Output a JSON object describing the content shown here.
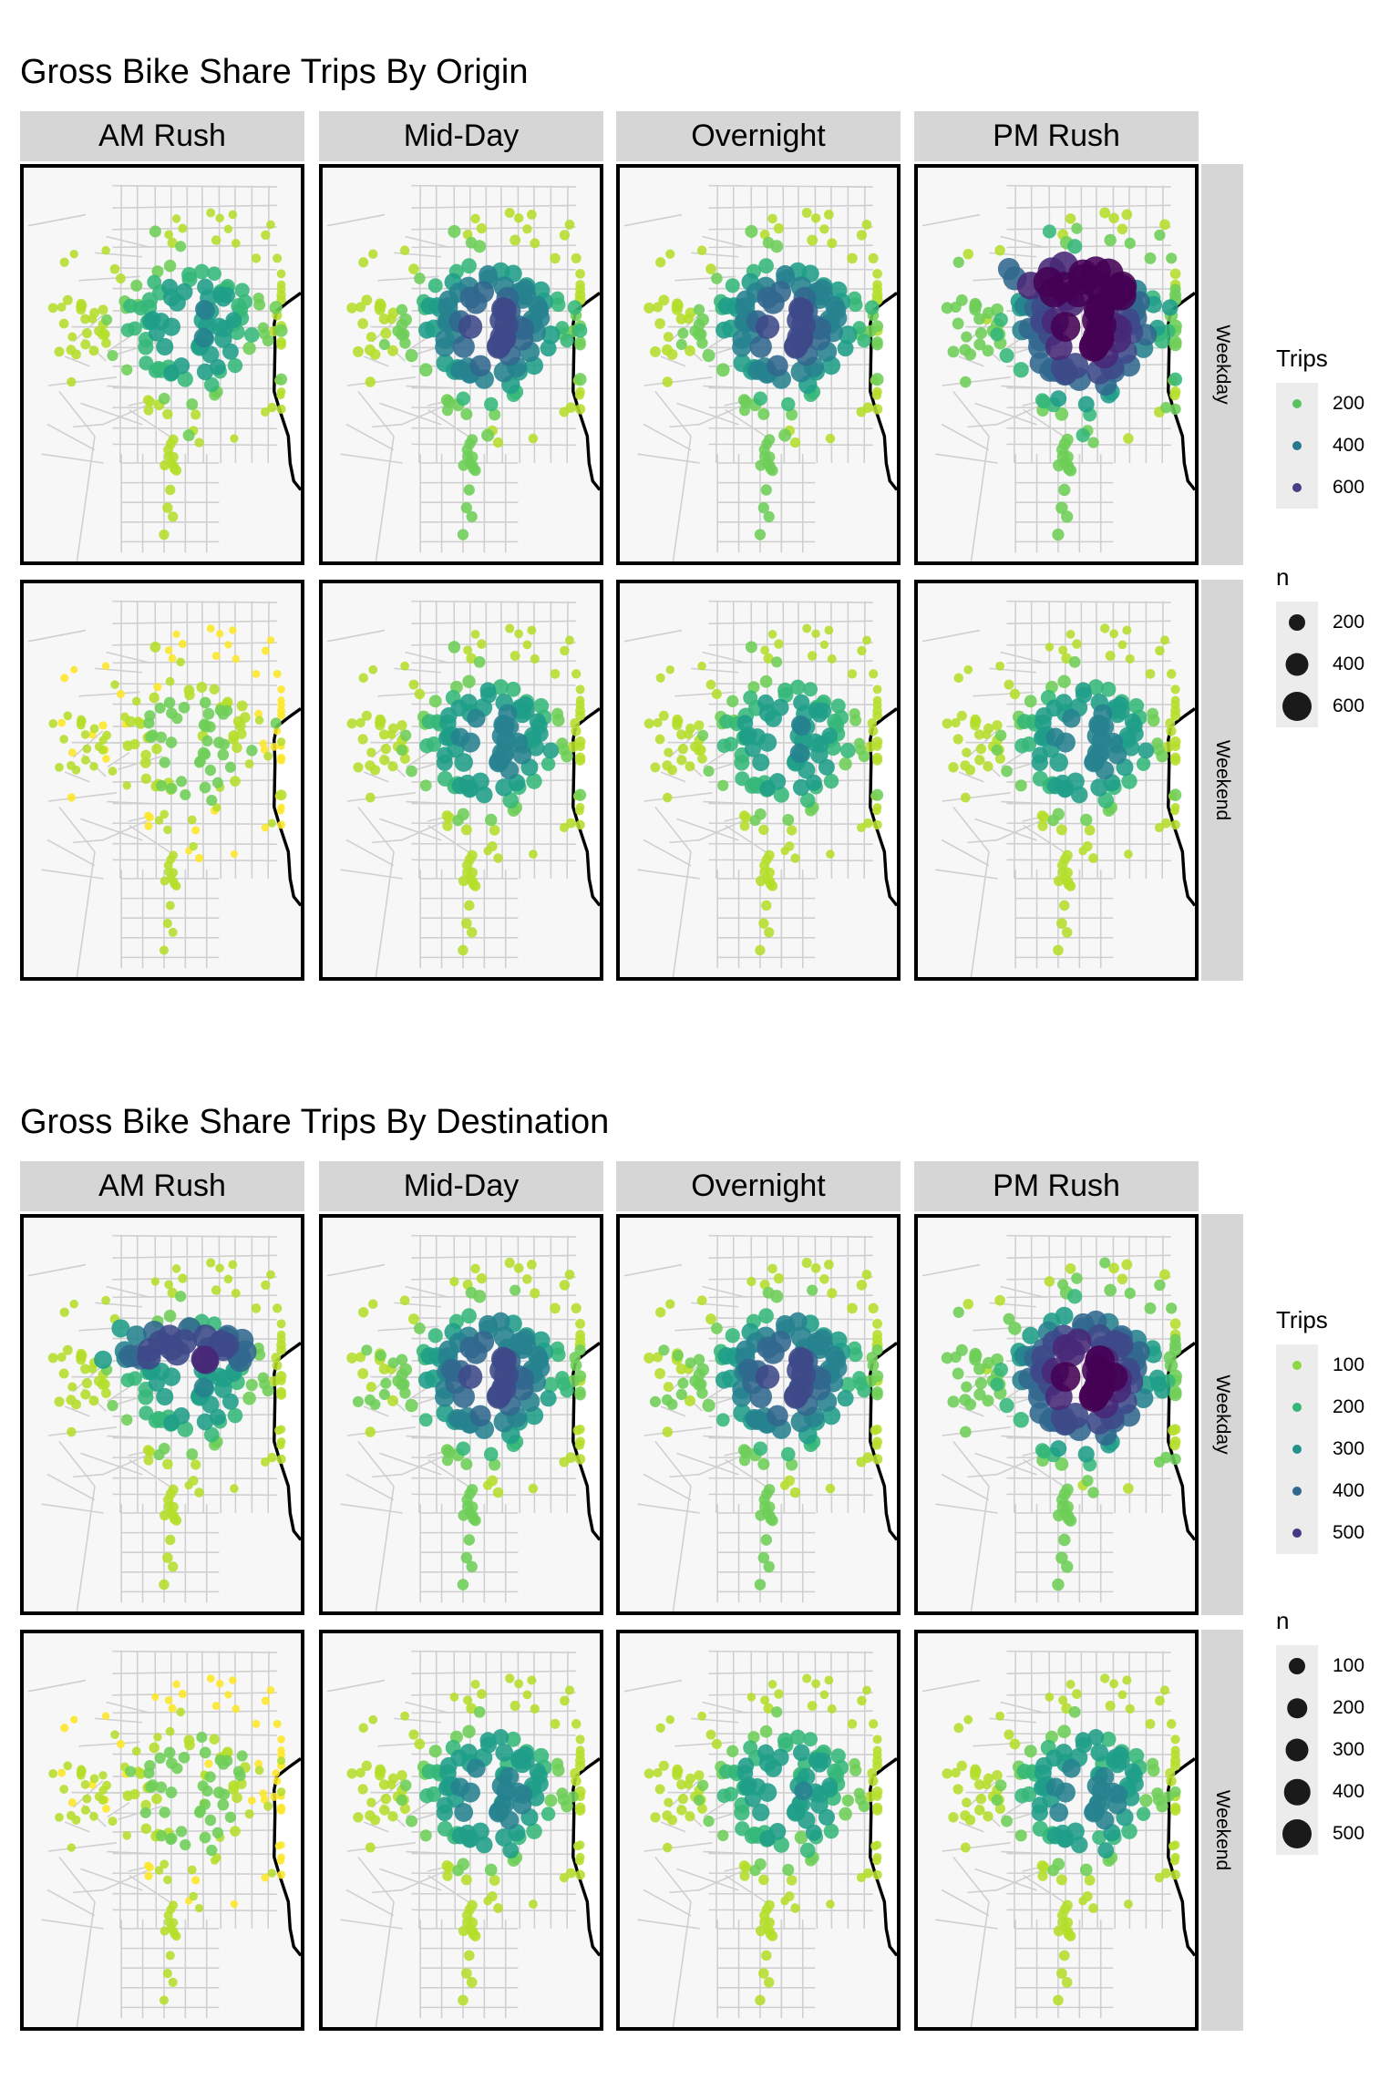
{
  "figures": [
    {
      "title": "Gross Bike Share Trips By Origin",
      "facet_columns": [
        "AM Rush",
        "Mid-Day",
        "Overnight",
        "PM Rush"
      ],
      "facet_rows": [
        "Weekday",
        "Weekend"
      ],
      "legend_color": {
        "title": "Trips",
        "labels": [
          "200",
          "400",
          "600"
        ],
        "colors": [
          "#5cc163",
          "#2a788e",
          "#433e85"
        ]
      },
      "legend_size": {
        "title": "n",
        "labels": [
          "200",
          "400",
          "600"
        ]
      }
    },
    {
      "title": "Gross Bike Share Trips By Destination",
      "facet_columns": [
        "AM Rush",
        "Mid-Day",
        "Overnight",
        "PM Rush"
      ],
      "facet_rows": [
        "Weekday",
        "Weekend"
      ],
      "legend_color": {
        "title": "Trips",
        "labels": [
          "100",
          "200",
          "300",
          "400",
          "500"
        ],
        "colors": [
          "#8fd744",
          "#35b779",
          "#21918c",
          "#31688e",
          "#443983"
        ]
      },
      "legend_size": {
        "title": "n",
        "labels": [
          "100",
          "200",
          "300",
          "400",
          "500"
        ]
      }
    }
  ],
  "viridis": [
    "#fde725",
    "#b5de2b",
    "#6ece58",
    "#35b779",
    "#1f9e89",
    "#26828e",
    "#31688e",
    "#3e4989",
    "#482878",
    "#440154"
  ]
}
